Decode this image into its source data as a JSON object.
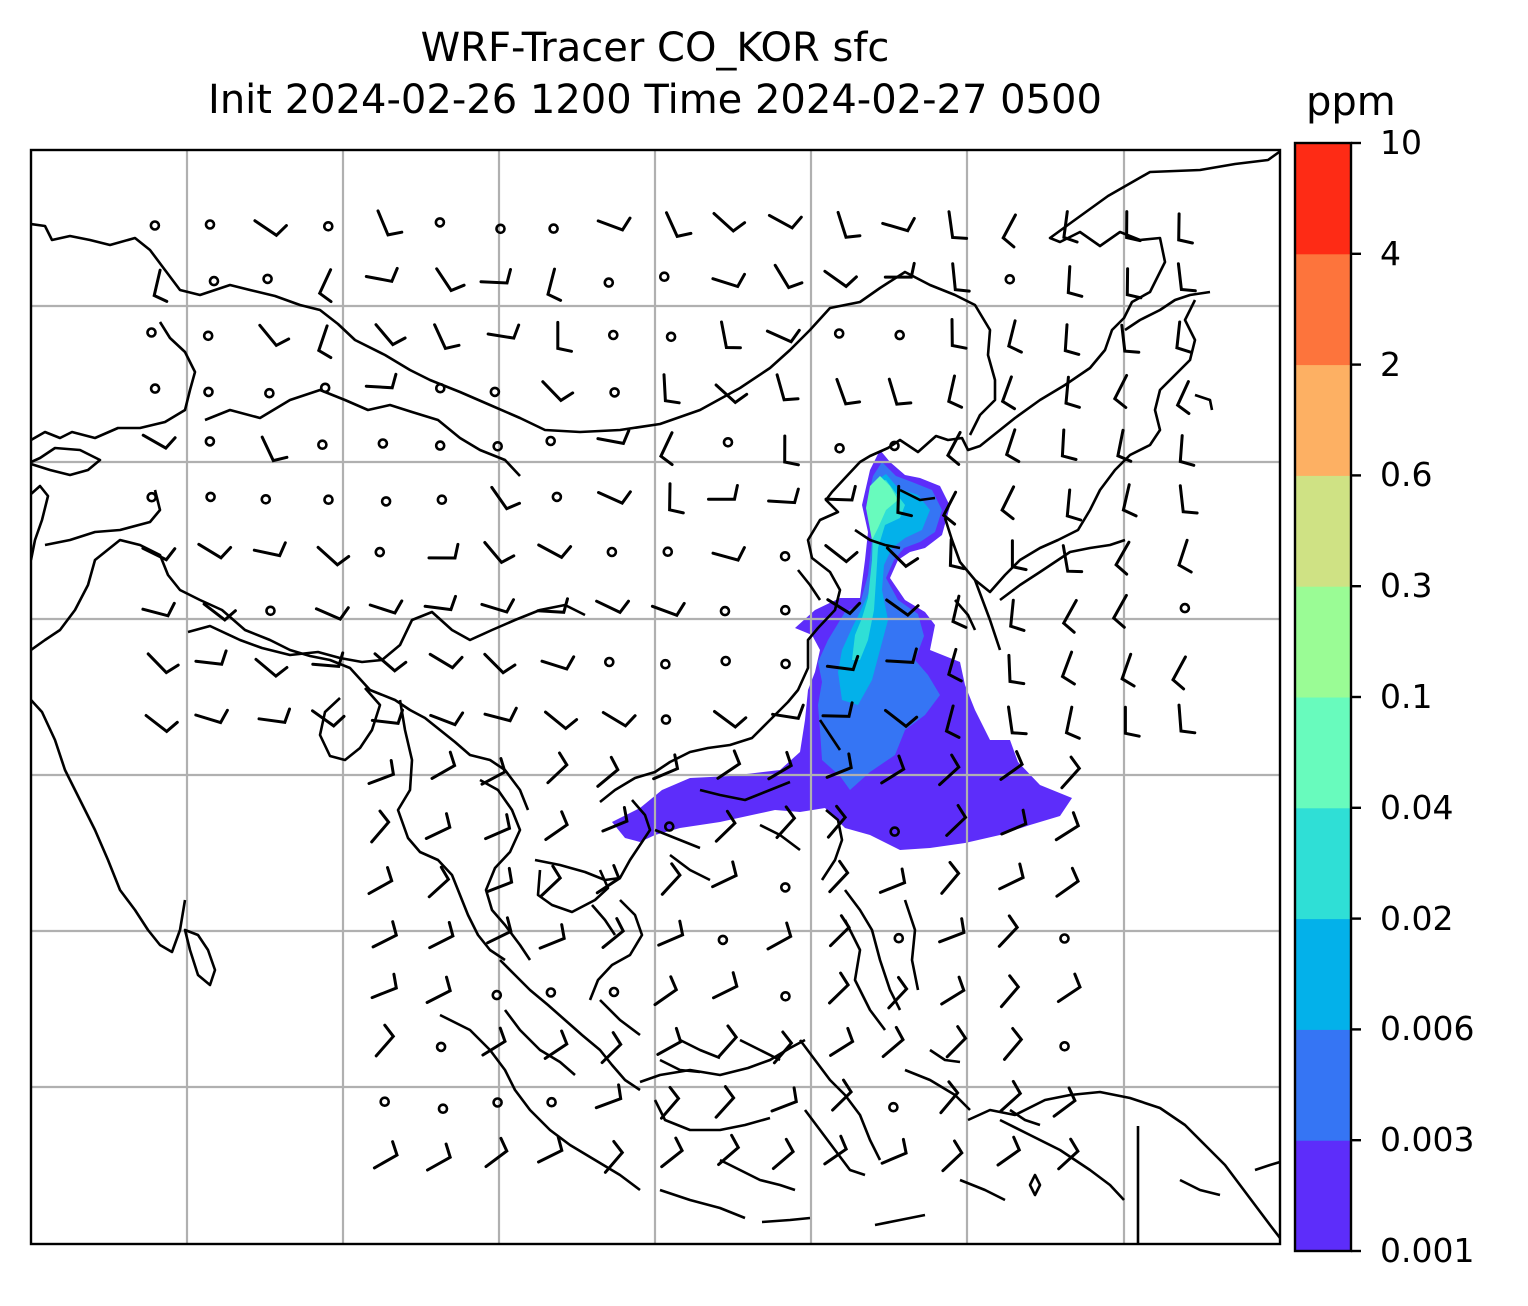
{
  "title": {
    "line1": "WRF-Tracer CO_KOR sfc",
    "line2": "Init 2024-02-26 1200 Time 2024-02-27 0500"
  },
  "colorbar": {
    "unit": "ppm",
    "levels": [
      "0.001",
      "0.003",
      "0.006",
      "0.02",
      "0.04",
      "0.1",
      "0.3",
      "0.6",
      "2",
      "4",
      "10"
    ],
    "colors": [
      "#5d2dfa",
      "#3575f4",
      "#03b1ea",
      "#2fdfd6",
      "#68fbbd",
      "#9afc95",
      "#cfe284",
      "#fdb063",
      "#fd743c",
      "#fe2b15"
    ]
  },
  "map": {
    "gridlines": true,
    "coastline_color": "#000000",
    "gridline_color": "#b0b0b0",
    "overlay": "surface wind barbs",
    "field": "CO_KOR tracer concentration"
  }
}
